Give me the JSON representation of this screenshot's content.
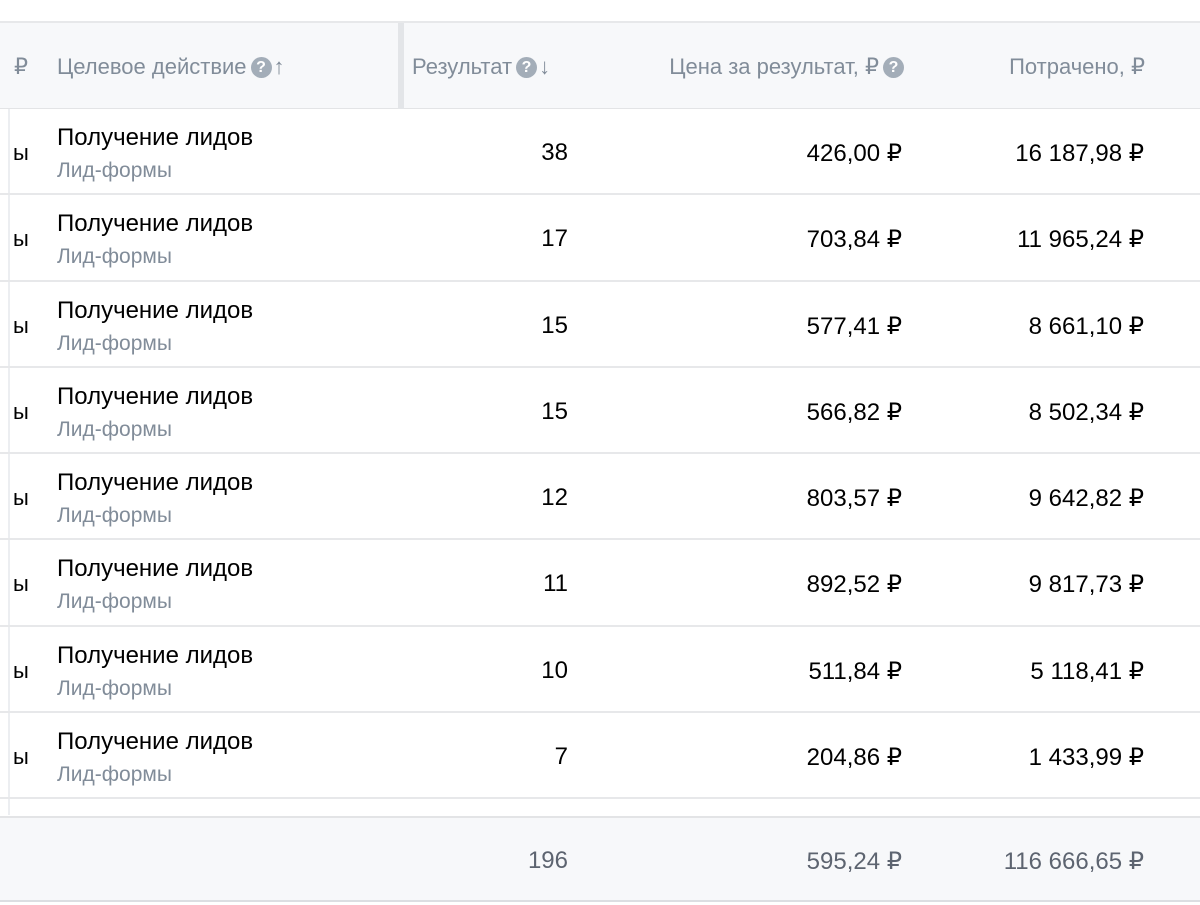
{
  "header": {
    "left_cut": "₽",
    "action_label": "Целевое действие",
    "action_help": "?",
    "action_sort": "↑",
    "result_label": "Результат",
    "result_help": "?",
    "result_sort": "↓",
    "price_label": "Цена за результат, ₽",
    "price_help": "?",
    "spent_label": "Потрачено, ₽"
  },
  "rows": [
    {
      "cut": "ы",
      "action": "Получение лидов",
      "source": "Лид-формы",
      "result": "38",
      "price": "426,00 ₽",
      "spent": "16 187,98 ₽"
    },
    {
      "cut": "ы",
      "action": "Получение лидов",
      "source": "Лид-формы",
      "result": "17",
      "price": "703,84 ₽",
      "spent": "11 965,24 ₽"
    },
    {
      "cut": "ы",
      "action": "Получение лидов",
      "source": "Лид-формы",
      "result": "15",
      "price": "577,41 ₽",
      "spent": "8 661,10 ₽"
    },
    {
      "cut": "ы",
      "action": "Получение лидов",
      "source": "Лид-формы",
      "result": "15",
      "price": "566,82 ₽",
      "spent": "8 502,34 ₽"
    },
    {
      "cut": "ы",
      "action": "Получение лидов",
      "source": "Лид-формы",
      "result": "12",
      "price": "803,57 ₽",
      "spent": "9 642,82 ₽"
    },
    {
      "cut": "ы",
      "action": "Получение лидов",
      "source": "Лид-формы",
      "result": "11",
      "price": "892,52 ₽",
      "spent": "9 817,73 ₽"
    },
    {
      "cut": "ы",
      "action": "Получение лидов",
      "source": "Лид-формы",
      "result": "10",
      "price": "511,84 ₽",
      "spent": "5 118,41 ₽"
    },
    {
      "cut": "ы",
      "action": "Получение лидов",
      "source": "Лид-формы",
      "result": "7",
      "price": "204,86 ₽",
      "spent": "1 433,99 ₽"
    }
  ],
  "totals": {
    "result": "196",
    "price": "595,24 ₽",
    "spent": "116 666,65 ₽"
  }
}
